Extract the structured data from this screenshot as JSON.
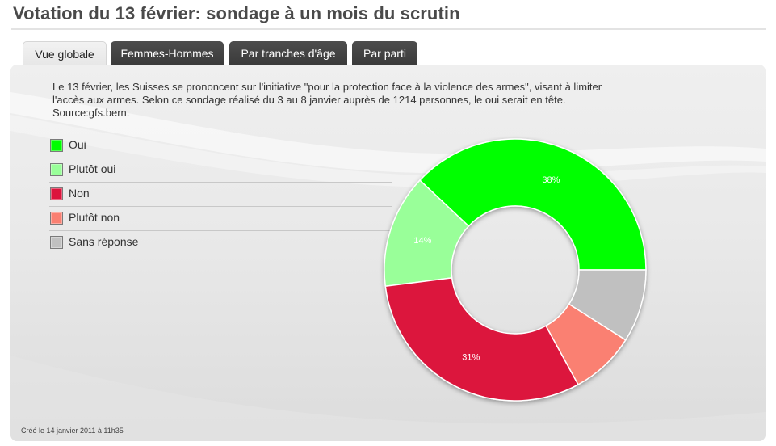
{
  "page": {
    "title": "Votation du 13 février: sondage à un mois du scrutin"
  },
  "tabs": [
    {
      "label": "Vue globale",
      "active": true
    },
    {
      "label": "Femmes-Hommes",
      "active": false
    },
    {
      "label": "Par tranches d'âge",
      "active": false
    },
    {
      "label": "Par parti",
      "active": false
    }
  ],
  "intro": {
    "line1": "Le 13 février, les Suisses se prononcent sur l'initiative \"pour la protection face à la violence des armes\", visant à limiter",
    "line2": "l'accès aux armes. Selon ce sondage réalisé du 3 au 8 janvier auprès de 1214 personnes, le oui serait en tête.",
    "line3": "Source:gfs.bern."
  },
  "footer": {
    "created": "Créé le 14 janvier 2011 à 11h35"
  },
  "chart_data": {
    "type": "pie",
    "style": "donut",
    "legend_position": "left",
    "series": [
      {
        "name": "Oui",
        "value": 38,
        "color": "#00ff00",
        "label": "38%"
      },
      {
        "name": "Plutôt oui",
        "value": 14,
        "color": "#99ff99",
        "label": "14%"
      },
      {
        "name": "Non",
        "value": 31,
        "color": "#dc143c",
        "label": "31%"
      },
      {
        "name": "Plutôt non",
        "value": 8,
        "color": "#fa8072",
        "label": ""
      },
      {
        "name": "Sans réponse",
        "value": 9,
        "color": "#c0c0c0",
        "label": ""
      }
    ]
  }
}
